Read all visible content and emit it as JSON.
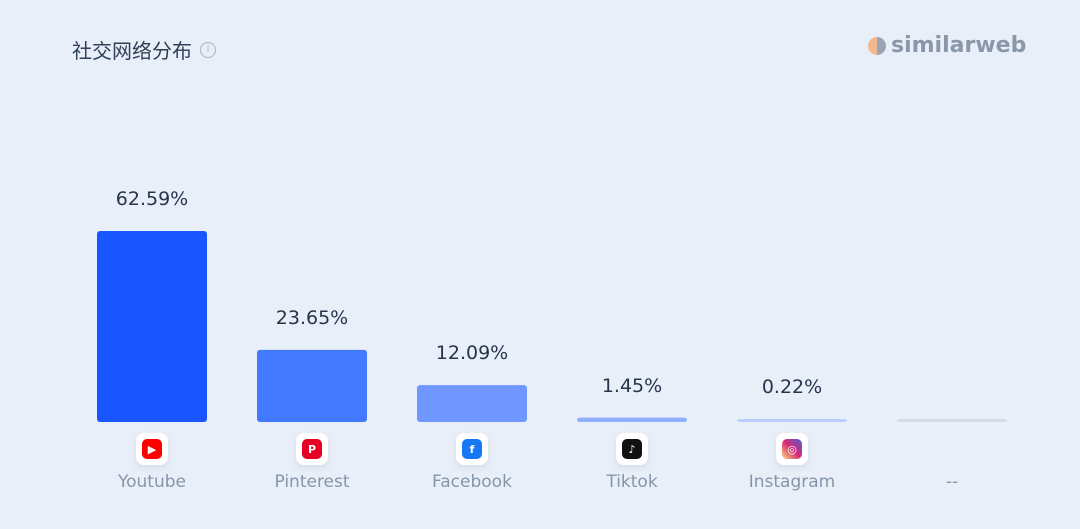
{
  "header": {
    "title": "社交网络分布",
    "info_icon": "info-icon",
    "brand": "similarweb"
  },
  "chart_data": {
    "type": "bar",
    "categories": [
      "Youtube",
      "Pinterest",
      "Facebook",
      "Tiktok",
      "Instagram",
      "--"
    ],
    "values": [
      62.59,
      23.65,
      12.09,
      1.45,
      0.22,
      null
    ],
    "value_labels": [
      "62.59%",
      "23.65%",
      "12.09%",
      "1.45%",
      "0.22%",
      ""
    ],
    "colors": [
      "#1a56ff",
      "#4279ff",
      "#6f97ff",
      "#8fb0ff",
      "#bcd0ff",
      "#d3dbe6"
    ],
    "icons": [
      "youtube-icon",
      "pinterest-icon",
      "facebook-icon",
      "tiktok-icon",
      "instagram-icon",
      ""
    ],
    "ylim": [
      0,
      65
    ],
    "grid": false
  }
}
